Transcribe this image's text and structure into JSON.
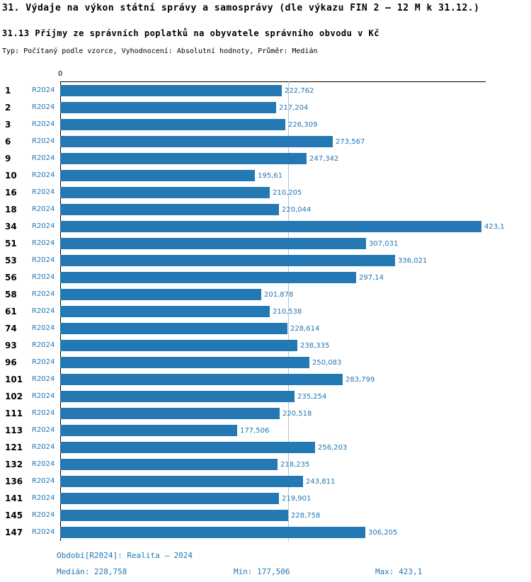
{
  "title": "31. Výdaje na výkon státní správy a samosprávy (dle výkazu FIN 2 – 12 M k 31.12.)",
  "subtitle": "31.13 Příjmy ze správních poplatků na obyvatele správního obvodu v Kč",
  "meta": "Typ: Počítaný podle vzorce, Vyhodnocení: Absolutní hodnoty, Průměr: Medián",
  "chart_data": {
    "type": "bar",
    "orientation": "horizontal",
    "title": "31.13 Příjmy ze správních poplatků na obyvatele správního obvodu v Kč",
    "series_label": "R2024",
    "zero_label": "0",
    "bar_color": "#2478b4",
    "median_line_value": 228.758,
    "categories": [
      "1",
      "2",
      "3",
      "6",
      "9",
      "10",
      "16",
      "18",
      "34",
      "51",
      "53",
      "56",
      "58",
      "61",
      "74",
      "93",
      "96",
      "101",
      "102",
      "111",
      "113",
      "121",
      "132",
      "136",
      "141",
      "145",
      "147"
    ],
    "values": [
      222.762,
      217.204,
      226.309,
      273.567,
      247.342,
      195.61,
      210.205,
      220.044,
      423.1,
      307.031,
      336.021,
      297.14,
      201.878,
      210.538,
      228.614,
      238.335,
      250.083,
      283.799,
      235.254,
      220.518,
      177.506,
      256.203,
      218.235,
      243.811,
      219.901,
      228.758,
      306.205
    ],
    "value_labels": [
      "222,762",
      "217,204",
      "226,309",
      "273,567",
      "247,342",
      "195,61",
      "210,205",
      "220,044",
      "423,1",
      "307,031",
      "336,021",
      "297,14",
      "201,878",
      "210,538",
      "228,614",
      "238,335",
      "250,083",
      "283,799",
      "235,254",
      "220,518",
      "177,506",
      "256,203",
      "218,235",
      "243,811",
      "219,901",
      "228,758",
      "306,205"
    ],
    "xlim": [
      0,
      423.1
    ],
    "grid": false,
    "legend_position": "none"
  },
  "footer": {
    "period": "Období[R2024]: Realita – 2024",
    "median": "Medián: 228,758",
    "min": "Min: 177,506",
    "max": "Max: 423,1"
  }
}
